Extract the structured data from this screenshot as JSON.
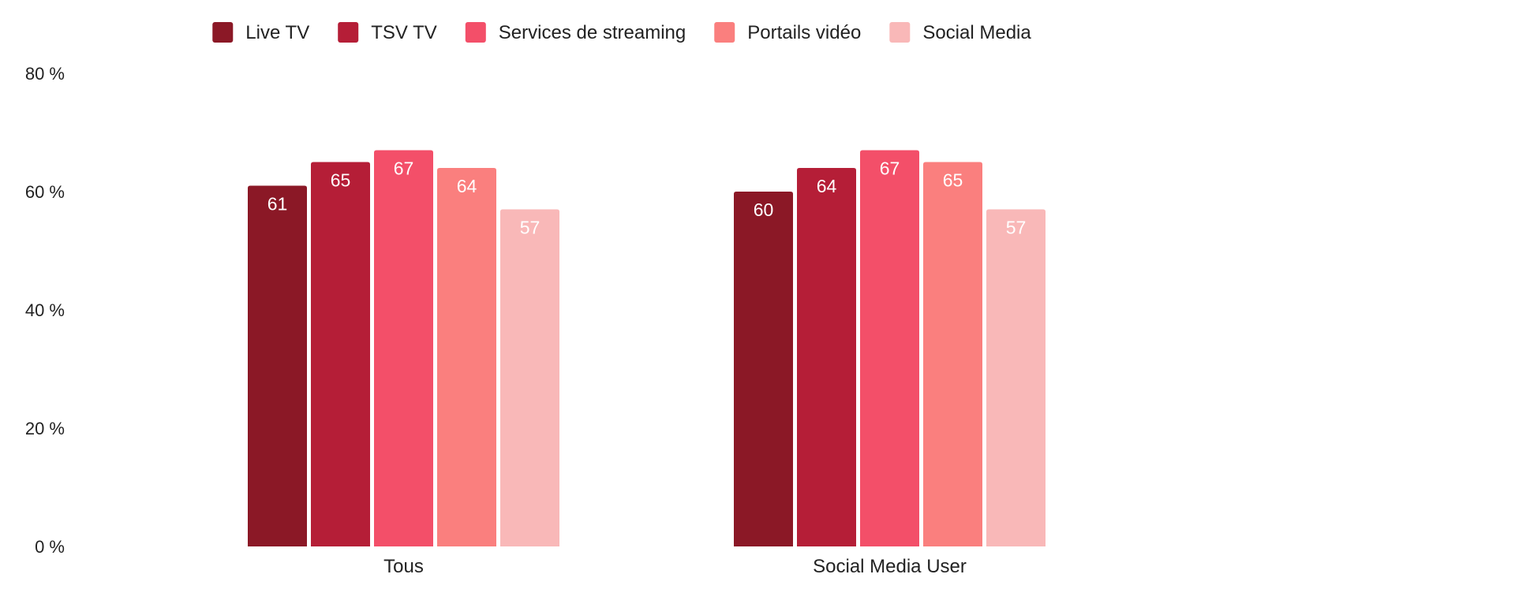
{
  "chart_data": {
    "type": "bar",
    "categories": [
      "Tous",
      "Social Media User"
    ],
    "series": [
      {
        "name": "Live TV",
        "color": "#8b1826",
        "values": [
          61,
          60
        ]
      },
      {
        "name": "TSV TV",
        "color": "#b51e37",
        "values": [
          65,
          64
        ]
      },
      {
        "name": "Services de streaming",
        "color": "#f34f69",
        "values": [
          67,
          67
        ]
      },
      {
        "name": "Portails vidéo",
        "color": "#fa7f7e",
        "values": [
          64,
          65
        ]
      },
      {
        "name": "Social Media",
        "color": "#f9b8b8",
        "values": [
          57,
          57
        ]
      }
    ],
    "yticks": [
      {
        "value": 0,
        "label": "0 %"
      },
      {
        "value": 20,
        "label": "20 %"
      },
      {
        "value": 40,
        "label": "40 %"
      },
      {
        "value": 60,
        "label": "60 %"
      },
      {
        "value": 80,
        "label": "80 %"
      }
    ],
    "ylim": [
      0,
      80
    ],
    "grid": false,
    "legend_position": "top"
  }
}
